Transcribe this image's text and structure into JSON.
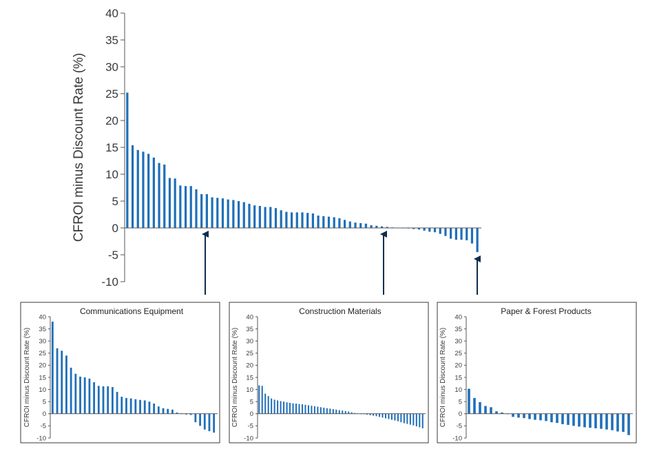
{
  "colors": {
    "bar": "#1f6fb9",
    "arrow": "#0d2d4e",
    "axis": "#555555",
    "text": "#3a3a3a",
    "frame": "#3a3a3a"
  },
  "chart_data": [
    {
      "type": "bar",
      "ylabel": "CFROI minus Discount Rate (%)",
      "ylim": [
        -10,
        40
      ],
      "yticks": [
        40,
        35,
        30,
        25,
        20,
        15,
        10,
        5,
        0,
        -5,
        -10
      ],
      "grid": false,
      "values": [
        25.2,
        15.4,
        14.5,
        14.2,
        13.8,
        13.1,
        12.1,
        11.8,
        9.3,
        9.2,
        7.9,
        7.8,
        7.8,
        7.2,
        6.3,
        6.3,
        5.7,
        5.6,
        5.5,
        5.3,
        5.2,
        5.0,
        4.8,
        4.5,
        4.2,
        4.1,
        3.9,
        3.9,
        3.7,
        3.3,
        3.0,
        2.9,
        2.9,
        2.9,
        2.8,
        2.7,
        2.3,
        2.2,
        2.1,
        2.0,
        1.8,
        1.5,
        1.2,
        1.0,
        0.9,
        0.8,
        0.5,
        0.4,
        0.3,
        0.2,
        0.1,
        0.05,
        0.0,
        -0.1,
        -0.2,
        -0.3,
        -0.5,
        -0.7,
        -0.8,
        -1.1,
        -1.5,
        -2.0,
        -2.2,
        -2.2,
        -2.3,
        -2.9,
        -4.5
      ]
    },
    {
      "type": "bar",
      "title": "Communications Equipment",
      "ylabel": "CFROI minus Discount Rate (%)",
      "ylim": [
        -10,
        40
      ],
      "yticks": [
        40,
        35,
        30,
        25,
        20,
        15,
        10,
        5,
        0,
        -5,
        -10
      ],
      "values": [
        38,
        27,
        26,
        24,
        19,
        16.5,
        15.3,
        15,
        14.5,
        13,
        11.5,
        11.3,
        11.3,
        11,
        9,
        7,
        6.5,
        6.3,
        6,
        5.7,
        5.5,
        5,
        4.2,
        3,
        2.3,
        2,
        1.7,
        0.5,
        0.2,
        -0.3,
        -0.5,
        -3.5,
        -5,
        -6.5,
        -7.2,
        -7.8
      ]
    },
    {
      "type": "bar",
      "title": "Construction Materials",
      "ylabel": "CFROI minus Discount Rate (%)",
      "ylim": [
        -10,
        40
      ],
      "yticks": [
        40,
        35,
        30,
        25,
        20,
        15,
        10,
        5,
        0,
        -5,
        -10
      ],
      "values": [
        11.7,
        11.5,
        8.3,
        7.3,
        6.3,
        5.8,
        5.5,
        5.2,
        5.0,
        4.7,
        4.5,
        4.3,
        4.2,
        4.0,
        3.9,
        3.7,
        3.5,
        3.3,
        3.1,
        2.9,
        2.7,
        2.5,
        2.3,
        2.1,
        1.9,
        1.7,
        1.5,
        1.3,
        1.1,
        0.9,
        0.6,
        0.3,
        0.1,
        -0.1,
        -0.2,
        -0.4,
        -0.6,
        -0.8,
        -1.0,
        -1.3,
        -1.6,
        -1.9,
        -2.2,
        -2.5,
        -2.8,
        -3.1,
        -3.5,
        -3.9,
        -4.2,
        -4.5,
        -4.8,
        -5.2,
        -5.6,
        -6.0
      ]
    },
    {
      "type": "bar",
      "title": "Paper & Forest Products",
      "ylabel": "CFROI minus Discount Rate (%)",
      "ylim": [
        -10,
        40
      ],
      "yticks": [
        40,
        35,
        30,
        25,
        20,
        15,
        10,
        5,
        0,
        -5,
        -10
      ],
      "values": [
        10.3,
        6.5,
        4.8,
        3.2,
        2.7,
        1.0,
        0.5,
        0,
        -1.3,
        -1.6,
        -1.8,
        -2.2,
        -2.5,
        -2.7,
        -3.0,
        -3.5,
        -3.8,
        -4.3,
        -4.6,
        -5.0,
        -5.3,
        -5.6,
        -5.8,
        -6.0,
        -6.2,
        -6.5,
        -6.8,
        -7.3,
        -7.5,
        -8.8
      ]
    }
  ]
}
